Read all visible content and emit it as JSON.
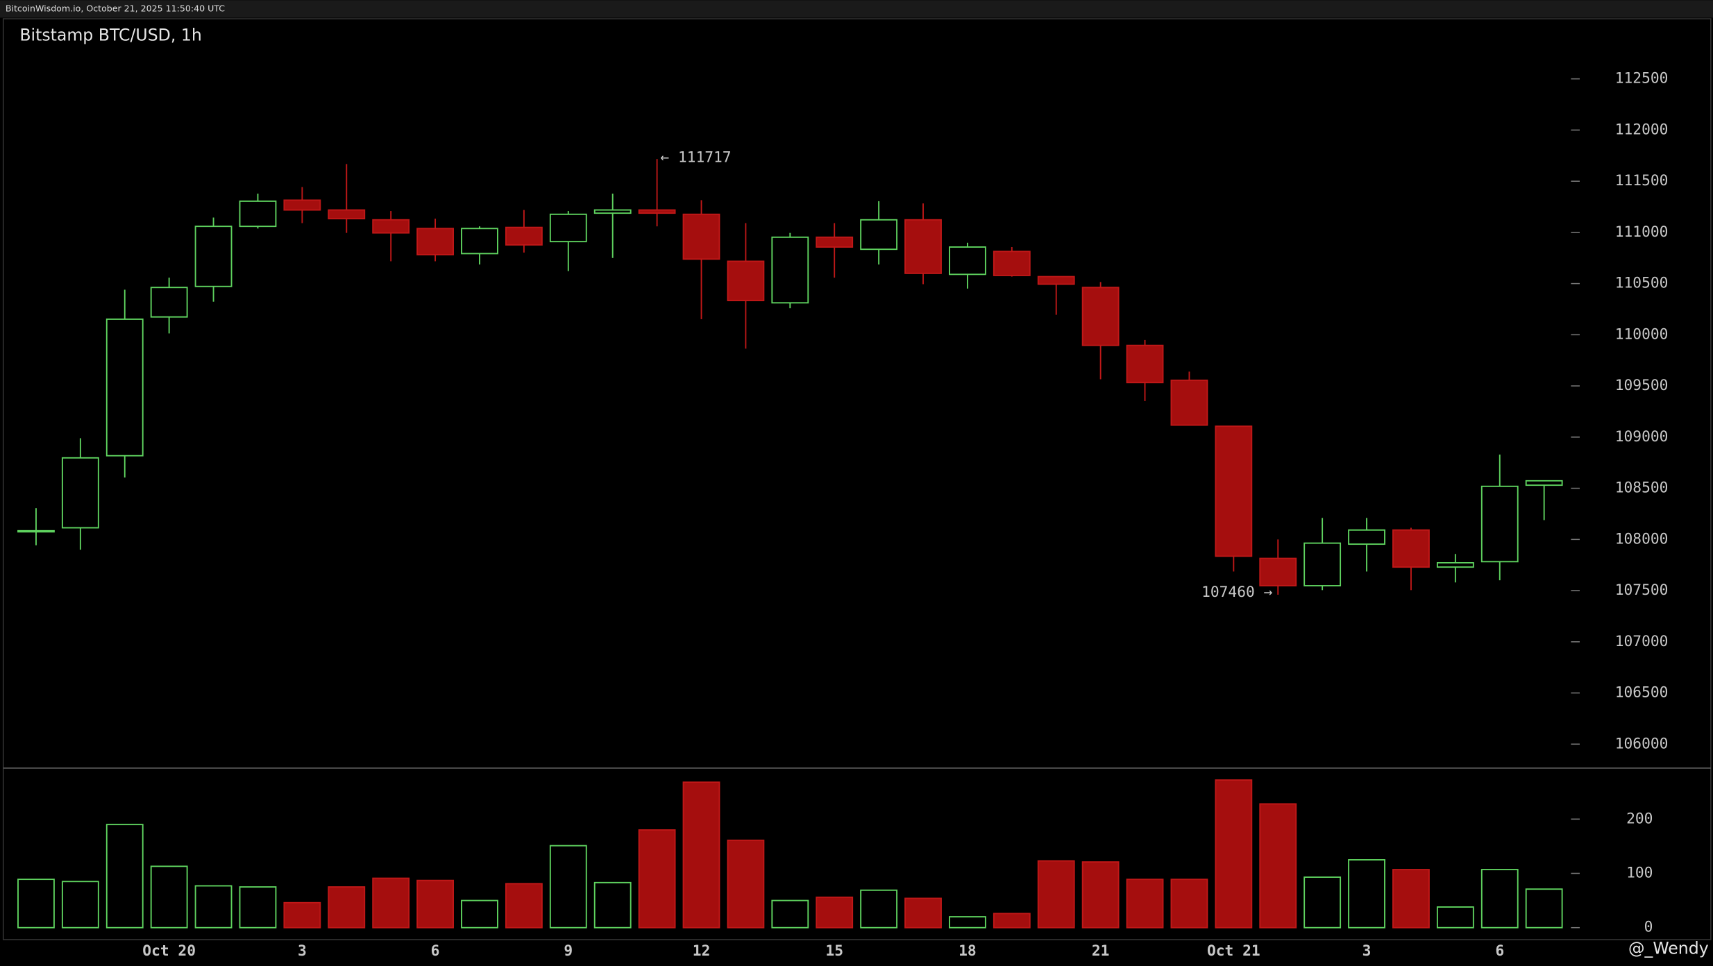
{
  "header": {
    "source": "BitcoinWisdom.io, October 21, 2025 11:50:40 UTC"
  },
  "watermark": "@_Wendy",
  "chart_data": [
    {
      "type": "candlestick",
      "title": "Bitstamp BTC/USD, 1h",
      "open": [
        108080,
        108114,
        108818,
        110174,
        110472,
        111059,
        111315,
        111219,
        111123,
        111038,
        110793,
        111049,
        110910,
        111188,
        111219,
        111177,
        110718,
        110312,
        110953,
        110835,
        111123,
        110590,
        110814,
        110568,
        110462,
        109896,
        109555,
        109106,
        107815,
        107548,
        107954,
        108092,
        107730,
        107783,
        108530
      ],
      "high": [
        108306,
        108989,
        110440,
        110558,
        111145,
        111379,
        111443,
        111668,
        111209,
        111134,
        111059,
        111219,
        111209,
        111379,
        111717,
        111315,
        111091,
        110995,
        111091,
        111305,
        111283,
        110899,
        110857,
        110568,
        110515,
        109949,
        109640,
        109106,
        108000,
        108210,
        108210,
        108114,
        107858,
        108829,
        108573
      ],
      "low": [
        107943,
        107900,
        108605,
        110013,
        110323,
        111038,
        111091,
        110995,
        110718,
        110718,
        110686,
        110803,
        110622,
        110750,
        111059,
        110152,
        109864,
        110259,
        110558,
        110686,
        110494,
        110451,
        110568,
        110195,
        109565,
        109352,
        109117,
        107687,
        107460,
        107505,
        107687,
        107505,
        107580,
        107601,
        108189
      ],
      "close": [
        108085,
        108797,
        110152,
        110462,
        111059,
        111305,
        111219,
        111134,
        110995,
        110782,
        111038,
        110878,
        111177,
        111219,
        111188,
        110739,
        110334,
        110953,
        110857,
        111123,
        110600,
        110857,
        110579,
        110494,
        109896,
        109533,
        109117,
        107836,
        107548,
        107964,
        108092,
        107730,
        107772,
        108519,
        108573
      ],
      "up_color": "#5fd35f",
      "down_color": "#a50e0e",
      "annotations": [
        "← 111717",
        "107460 →"
      ],
      "ylim": [
        105766,
        112735
      ],
      "yticks": [
        106000,
        106500,
        107000,
        107500,
        108000,
        108500,
        109000,
        109500,
        110000,
        110500,
        111000,
        111500,
        112000,
        112500
      ]
    },
    {
      "type": "bar",
      "categories": [
        null,
        null,
        null,
        "Oct 20",
        null,
        null,
        "3",
        null,
        null,
        "6",
        null,
        null,
        "9",
        null,
        null,
        "12",
        null,
        null,
        "15",
        null,
        null,
        "18",
        null,
        null,
        "21",
        null,
        null,
        "Oct 21",
        null,
        null,
        "3",
        null,
        null,
        "6",
        null
      ],
      "values": [
        89,
        85,
        190,
        113,
        77,
        75,
        46,
        75,
        91,
        87,
        50,
        81,
        151,
        83,
        180,
        268,
        161,
        50,
        56,
        69,
        54,
        20,
        26,
        123,
        121,
        89,
        89,
        272,
        228,
        93,
        125,
        107,
        38,
        107,
        71
      ],
      "ylim": [
        -22,
        294
      ],
      "yticks": [
        0,
        100,
        200
      ]
    }
  ]
}
